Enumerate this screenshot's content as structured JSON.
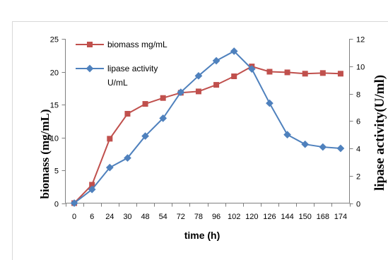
{
  "chart_data": {
    "type": "line",
    "title": "",
    "xlabel": "time (h)",
    "ylabel": "biomass (mg/mL)",
    "y2label": "lipase activity(U/ml)",
    "categories": [
      "0",
      "6",
      "24",
      "30",
      "48",
      "54",
      "72",
      "78",
      "96",
      "102",
      "120",
      "126",
      "144",
      "150",
      "168",
      "174"
    ],
    "ylim": [
      0,
      25
    ],
    "yticks": [
      0,
      5,
      10,
      15,
      20,
      25
    ],
    "y2lim": [
      0,
      12
    ],
    "y2ticks": [
      0,
      2,
      4,
      6,
      8,
      10,
      12
    ],
    "grid": false,
    "legend_position": "top-left",
    "series": [
      {
        "name": "biomass mg/mL",
        "axis": "y",
        "marker": "square",
        "color": "#C0504D",
        "values": [
          0,
          2.8,
          9.8,
          13.6,
          15.1,
          16.0,
          16.8,
          17.0,
          18.0,
          19.3,
          20.8,
          20.0,
          19.9,
          19.7,
          19.8,
          19.7
        ]
      },
      {
        "name": "lipase activity U/mL",
        "axis": "y2",
        "marker": "diamond",
        "color": "#4F81BD",
        "values": [
          0,
          1.0,
          2.6,
          3.3,
          4.9,
          6.2,
          8.1,
          9.3,
          10.4,
          11.1,
          9.8,
          7.3,
          5.0,
          4.3,
          4.1,
          4.0
        ]
      }
    ]
  }
}
